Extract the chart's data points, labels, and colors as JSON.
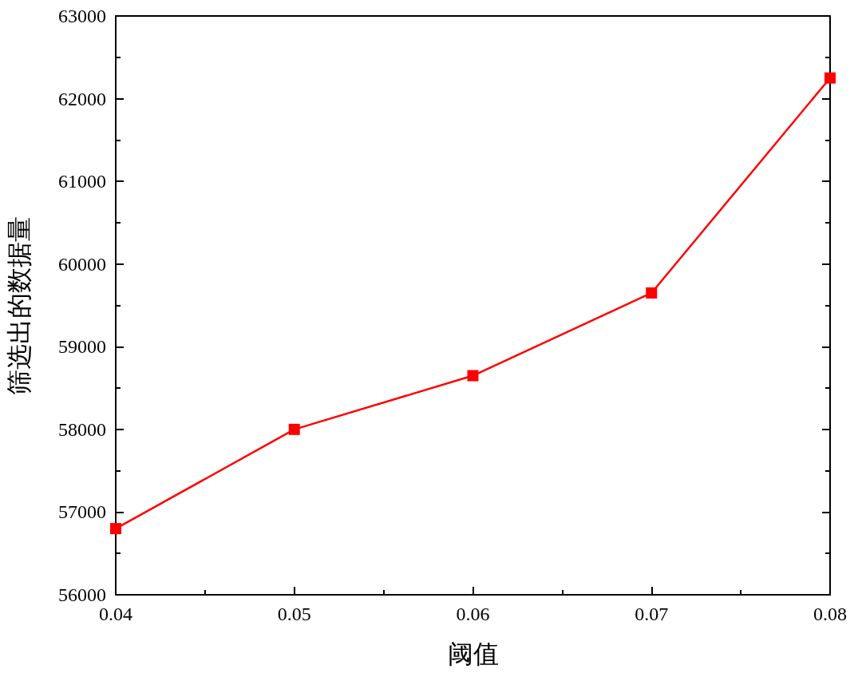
{
  "chart_data": {
    "type": "line",
    "xlabel": "阈值",
    "ylabel": "筛选出的数据量",
    "x": [
      0.04,
      0.05,
      0.06,
      0.07,
      0.08
    ],
    "series": [
      {
        "color": "#ff0000",
        "values": [
          56800,
          58000,
          58650,
          59650,
          62250
        ]
      }
    ],
    "xlim": [
      0.04,
      0.08
    ],
    "xticks": [
      0.04,
      0.05,
      0.06,
      0.07,
      0.08
    ],
    "ylim": [
      56000,
      63000
    ],
    "yticks": [
      56000,
      57000,
      58000,
      59000,
      60000,
      61000,
      62000,
      63000
    ],
    "marker": "square",
    "line_style": "solid"
  }
}
